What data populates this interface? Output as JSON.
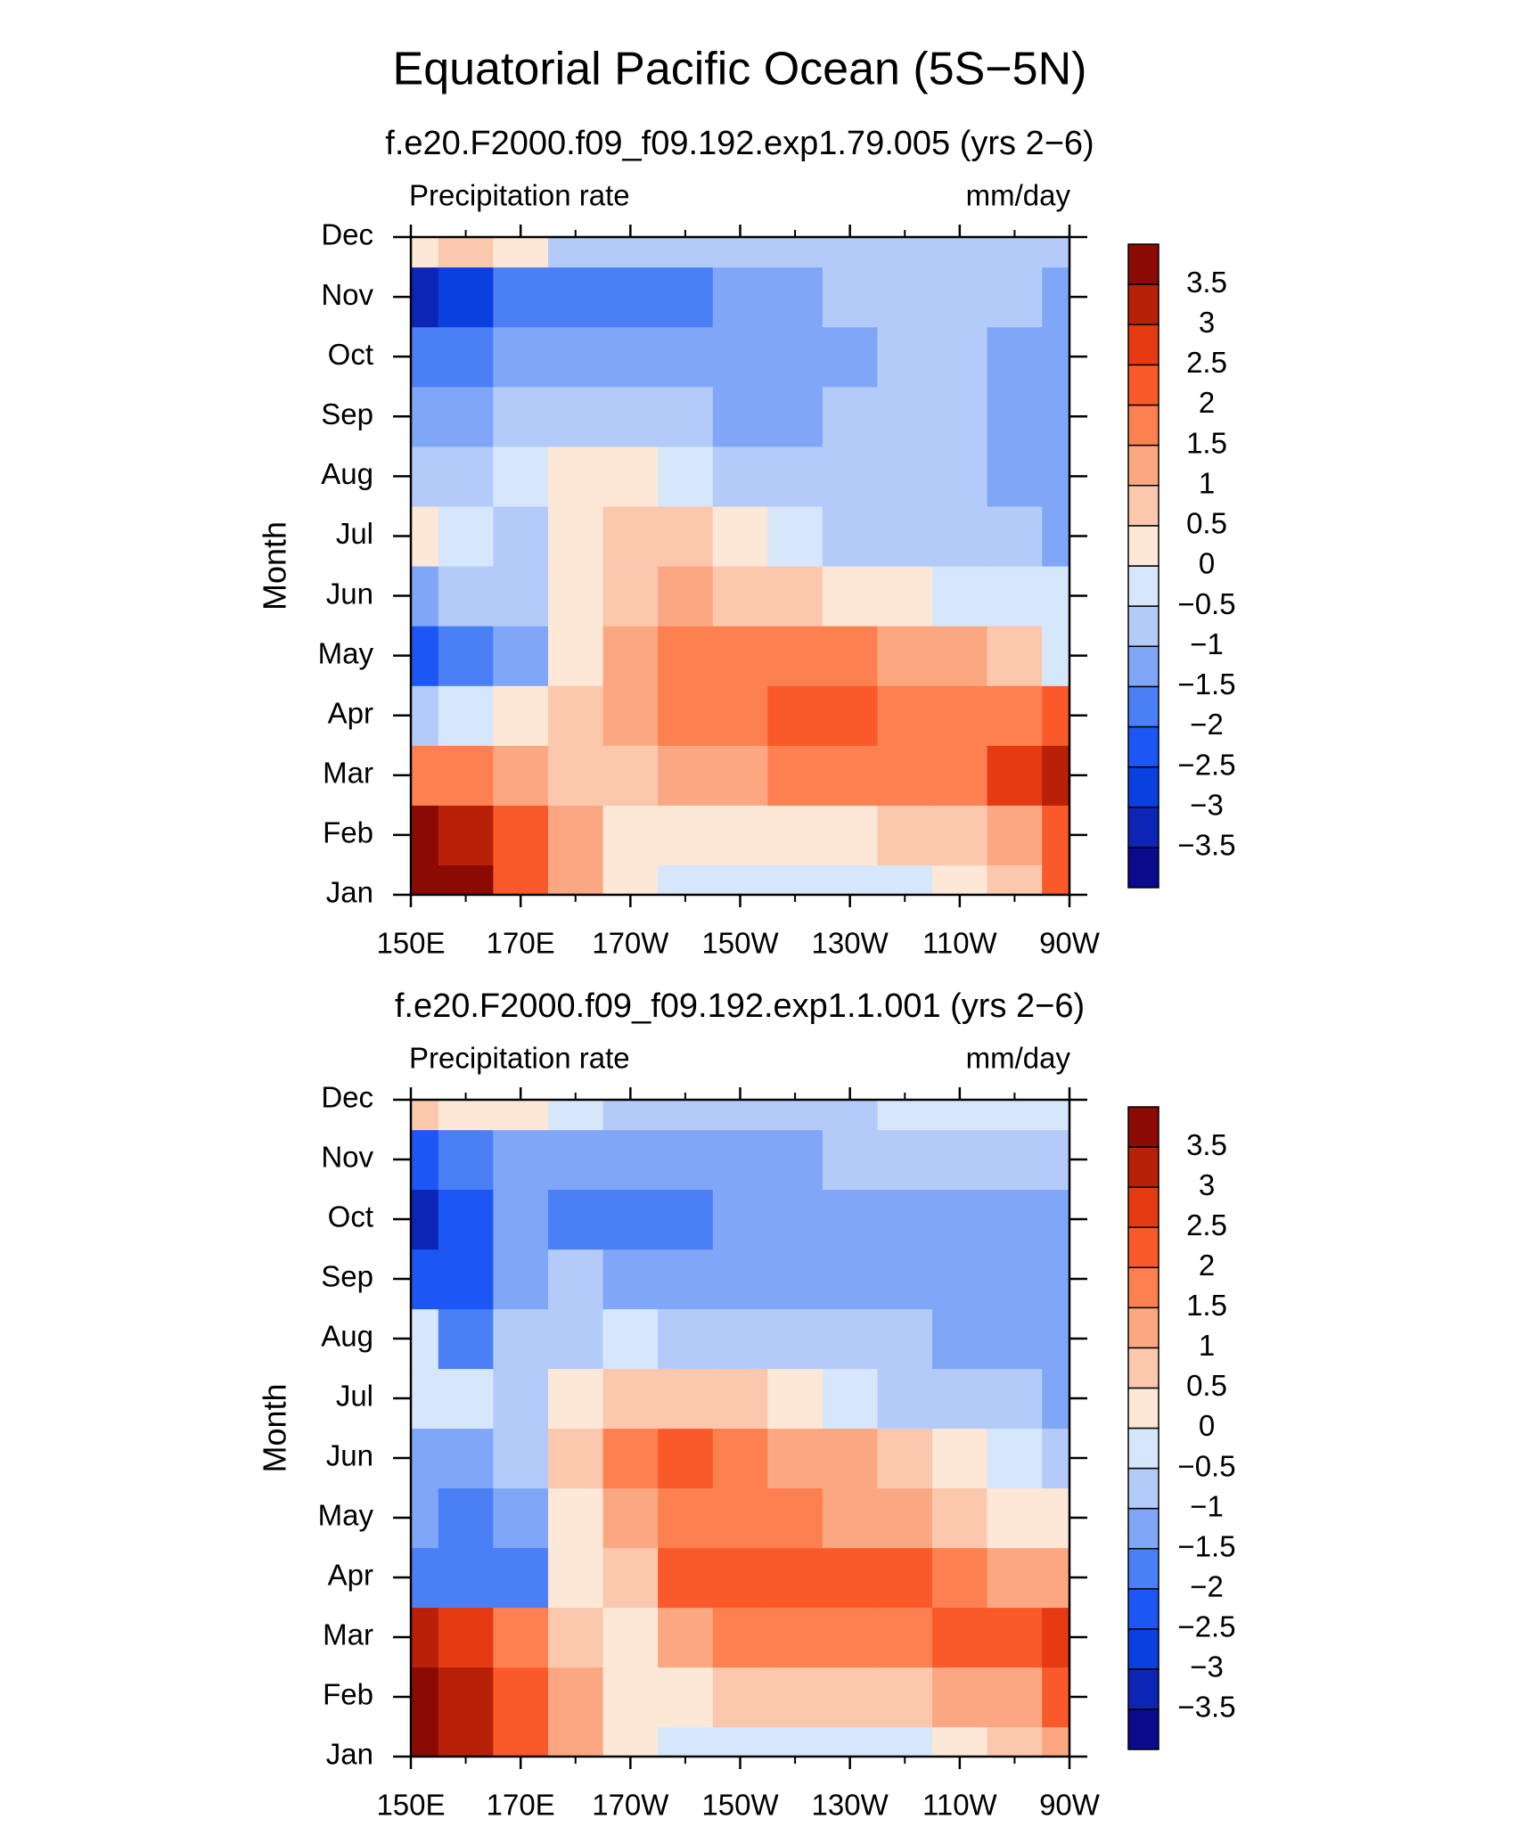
{
  "title": "Equatorial Pacific Ocean (5S−5N)",
  "chart_data": [
    {
      "type": "contour",
      "subtitle": "f.e20.F2000.f09_f09.192.exp1.79.005 (yrs 2−6)",
      "left_label": "Precipitation rate",
      "right_label": "mm/day",
      "ylabel": "Month",
      "x": [
        150,
        160,
        170,
        180,
        190,
        200,
        210,
        220,
        230,
        240,
        250,
        260,
        270
      ],
      "y": [
        "Jan",
        "Feb",
        "Mar",
        "Apr",
        "May",
        "Jun",
        "Jul",
        "Aug",
        "Sep",
        "Oct",
        "Nov",
        "Dec"
      ],
      "values": [
        [
          3.8,
          3.5,
          2.2,
          1.0,
          0.3,
          -0.3,
          -0.3,
          -0.3,
          -0.3,
          -0.2,
          0.2,
          0.8,
          2.0
        ],
        [
          3.5,
          3.0,
          2.0,
          1.0,
          0.4,
          0.3,
          0.3,
          0.3,
          0.4,
          0.5,
          0.8,
          1.3,
          2.2
        ],
        [
          1.8,
          1.5,
          1.2,
          0.8,
          0.8,
          1.1,
          1.3,
          1.5,
          1.6,
          1.7,
          1.9,
          2.6,
          3.0
        ],
        [
          -0.6,
          -0.5,
          0.3,
          0.7,
          1.2,
          1.7,
          1.8,
          2.0,
          2.1,
          1.8,
          1.7,
          1.8,
          2.0
        ],
        [
          -2.2,
          -2.0,
          -1.2,
          0.3,
          1.1,
          1.7,
          1.7,
          1.7,
          1.6,
          1.4,
          1.2,
          0.8,
          -0.3
        ],
        [
          -1.2,
          -1.0,
          -0.6,
          0.0,
          0.8,
          1.0,
          0.8,
          0.6,
          0.3,
          0.1,
          -0.2,
          -0.4,
          -0.5
        ],
        [
          0.2,
          -0.4,
          -0.6,
          0.2,
          0.9,
          0.5,
          0.1,
          -0.3,
          -0.6,
          -0.6,
          -0.7,
          -0.9,
          -1.2
        ],
        [
          -0.8,
          -0.6,
          -0.4,
          0.3,
          0.2,
          -0.3,
          -0.6,
          -0.7,
          -0.8,
          -0.8,
          -0.8,
          -1.1,
          -1.3
        ],
        [
          -1.2,
          -1.3,
          -0.8,
          -0.6,
          -0.8,
          -1.0,
          -1.1,
          -1.1,
          -1.0,
          -0.8,
          -0.8,
          -1.2,
          -1.3
        ],
        [
          -1.8,
          -2.0,
          -1.3,
          -1.1,
          -1.3,
          -1.3,
          -1.2,
          -1.2,
          -1.1,
          -0.8,
          -0.8,
          -1.1,
          -1.3
        ],
        [
          -3.2,
          -2.8,
          -1.8,
          -1.7,
          -1.9,
          -1.6,
          -1.2,
          -1.1,
          -0.9,
          -0.8,
          -0.8,
          -0.8,
          -1.1
        ],
        [
          0.4,
          0.6,
          0.2,
          -0.6,
          -0.7,
          -0.7,
          -0.6,
          -0.7,
          -0.7,
          -0.7,
          -0.7,
          -0.7,
          -0.8
        ]
      ],
      "xlim": [
        150,
        270
      ],
      "xticks": [
        {
          "value": 150,
          "label": "150E"
        },
        {
          "value": 170,
          "label": "170E"
        },
        {
          "value": 190,
          "label": "170W"
        },
        {
          "value": 210,
          "label": "150W"
        },
        {
          "value": 230,
          "label": "130W"
        },
        {
          "value": 250,
          "label": "110W"
        },
        {
          "value": 270,
          "label": "90W"
        }
      ],
      "xminorticks": [
        160,
        180,
        200,
        220,
        240,
        260
      ],
      "levels": [
        {
          "value": -3.5,
          "label": "−3.5"
        },
        {
          "value": -3,
          "label": "−3"
        },
        {
          "value": -2.5,
          "label": "−2.5"
        },
        {
          "value": -2,
          "label": "−2"
        },
        {
          "value": -1.5,
          "label": "−1.5"
        },
        {
          "value": -1,
          "label": "−1"
        },
        {
          "value": -0.5,
          "label": "−0.5"
        },
        0,
        0.5,
        1,
        1.5,
        2,
        2.5,
        3,
        3.5
      ],
      "colors": [
        "#0a0a8c",
        "#0c25b5",
        "#0a3fe0",
        "#1c56f5",
        "#4a7ff5",
        "#80a6f8",
        "#b4cbfa",
        "#d6e6fb",
        "#fde7d6",
        "#fbc8ae",
        "#fba882",
        "#fc8050",
        "#fa5a2a",
        "#e53a12",
        "#b82008",
        "#8c0a04"
      ]
    },
    {
      "type": "contour",
      "subtitle": "f.e20.F2000.f09_f09.192.exp1.1.001 (yrs 2−6)",
      "left_label": "Precipitation rate",
      "right_label": "mm/day",
      "ylabel": "Month",
      "x": [
        150,
        160,
        170,
        180,
        190,
        200,
        210,
        220,
        230,
        240,
        250,
        260,
        270
      ],
      "y": [
        "Jan",
        "Feb",
        "Mar",
        "Apr",
        "May",
        "Jun",
        "Jul",
        "Aug",
        "Sep",
        "Oct",
        "Nov",
        "Dec"
      ],
      "values": [
        [
          3.7,
          3.0,
          2.0,
          1.0,
          0.3,
          -0.2,
          -0.3,
          -0.3,
          -0.3,
          -0.3,
          0.1,
          0.5,
          1.4
        ],
        [
          3.8,
          3.2,
          2.0,
          1.0,
          0.4,
          0.4,
          0.5,
          0.6,
          0.7,
          0.8,
          1.0,
          1.4,
          2.2
        ],
        [
          3.0,
          2.6,
          1.6,
          0.8,
          0.4,
          1.2,
          1.5,
          1.7,
          1.8,
          1.9,
          2.0,
          2.2,
          2.6
        ],
        [
          -2.0,
          -1.6,
          -1.8,
          0.2,
          0.8,
          2.2,
          2.2,
          2.3,
          2.2,
          2.3,
          1.8,
          1.4,
          1.3
        ],
        [
          -1.5,
          -2.0,
          -1.4,
          0.3,
          1.3,
          1.6,
          1.8,
          1.6,
          1.4,
          1.2,
          0.7,
          0.3,
          0.1
        ],
        [
          -1.5,
          -1.2,
          -0.8,
          0.7,
          1.6,
          2.0,
          1.8,
          1.2,
          1.0,
          0.6,
          0.0,
          -0.4,
          -0.8
        ],
        [
          -0.3,
          -0.3,
          -0.6,
          0.3,
          0.9,
          0.7,
          0.5,
          0.2,
          -0.3,
          -0.6,
          -0.8,
          -1.0,
          -1.1
        ],
        [
          -0.3,
          -1.6,
          -0.9,
          -0.6,
          -0.4,
          -0.6,
          -0.7,
          -0.9,
          -1.0,
          -1.0,
          -1.1,
          -1.2,
          -1.3
        ],
        [
          -2.2,
          -2.2,
          -1.2,
          -1.0,
          -1.1,
          -1.2,
          -1.1,
          -1.2,
          -1.4,
          -1.3,
          -1.2,
          -1.3,
          -1.4
        ],
        [
          -3.2,
          -2.4,
          -1.4,
          -1.6,
          -1.8,
          -1.8,
          -1.4,
          -1.3,
          -1.3,
          -1.5,
          -1.2,
          -1.2,
          -1.3
        ],
        [
          -2.2,
          -1.6,
          -1.3,
          -1.1,
          -1.2,
          -1.3,
          -1.2,
          -1.1,
          -1.0,
          -0.9,
          -0.8,
          -0.8,
          -1.0
        ],
        [
          0.6,
          0.3,
          0.2,
          -0.5,
          -0.8,
          -1.0,
          -0.9,
          -0.6,
          -0.6,
          -0.5,
          -0.4,
          -0.3,
          -0.5
        ]
      ],
      "xlim": [
        150,
        270
      ],
      "xticks": [
        {
          "value": 150,
          "label": "150E"
        },
        {
          "value": 170,
          "label": "170E"
        },
        {
          "value": 190,
          "label": "170W"
        },
        {
          "value": 210,
          "label": "150W"
        },
        {
          "value": 230,
          "label": "130W"
        },
        {
          "value": 250,
          "label": "110W"
        },
        {
          "value": 270,
          "label": "90W"
        }
      ],
      "xminorticks": [
        160,
        180,
        200,
        220,
        240,
        260
      ],
      "levels": [
        {
          "value": -3.5,
          "label": "−3.5"
        },
        {
          "value": -3,
          "label": "−3"
        },
        {
          "value": -2.5,
          "label": "−2.5"
        },
        {
          "value": -2,
          "label": "−2"
        },
        {
          "value": -1.5,
          "label": "−1.5"
        },
        {
          "value": -1,
          "label": "−1"
        },
        {
          "value": -0.5,
          "label": "−0.5"
        },
        0,
        0.5,
        1,
        1.5,
        2,
        2.5,
        3,
        3.5
      ],
      "colors": [
        "#0a0a8c",
        "#0c25b5",
        "#0a3fe0",
        "#1c56f5",
        "#4a7ff5",
        "#80a6f8",
        "#b4cbfa",
        "#d6e6fb",
        "#fde7d6",
        "#fbc8ae",
        "#fba882",
        "#fc8050",
        "#fa5a2a",
        "#e53a12",
        "#b82008",
        "#8c0a04"
      ]
    }
  ]
}
